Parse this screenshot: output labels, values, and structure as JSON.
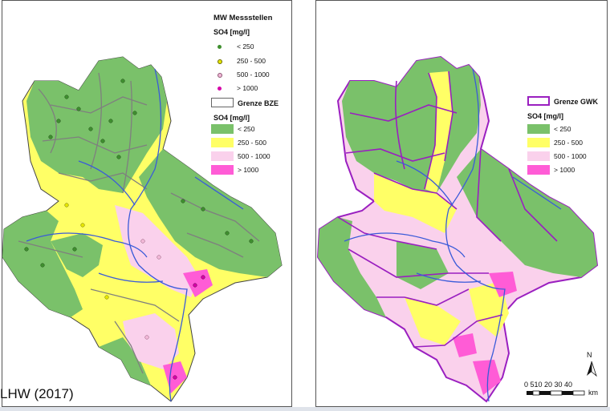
{
  "left_map": {
    "legend": {
      "title": "MW Messstellen",
      "points_heading": "SO4 [mg/l]",
      "point_classes": [
        {
          "label": "< 250",
          "color": "#3f8f2f"
        },
        {
          "label": "250 - 500",
          "color": "#e6e600"
        },
        {
          "label": "500 - 1000",
          "color": "#f2b8d8"
        },
        {
          "label": "> 1000",
          "color": "#d600a8"
        }
      ],
      "boundary_label": "Grenze BZE",
      "areas_heading": "SO4 [mg/l]",
      "area_classes": [
        {
          "label": "< 250",
          "color": "#7ac16a"
        },
        {
          "label": "250 - 500",
          "color": "#ffff66"
        },
        {
          "label": "500 - 1000",
          "color": "#fad1ec"
        },
        {
          "label": "> 1000",
          "color": "#ff5cd6"
        }
      ]
    },
    "credit": "LHW (2017)"
  },
  "right_map": {
    "legend": {
      "boundary_label": "Grenze GWK",
      "boundary_color": "#9a1fc0",
      "areas_heading": "SO4 [mg/l]",
      "area_classes": [
        {
          "label": "< 250",
          "color": "#7ac16a"
        },
        {
          "label": "250 - 500",
          "color": "#ffff66"
        },
        {
          "label": "500 - 1000",
          "color": "#fad1ec"
        },
        {
          "label": "> 1000",
          "color": "#ff5cd6"
        }
      ]
    },
    "north_label": "N",
    "scale": {
      "ticks": "0 510  20  30  40",
      "unit": "km"
    }
  }
}
